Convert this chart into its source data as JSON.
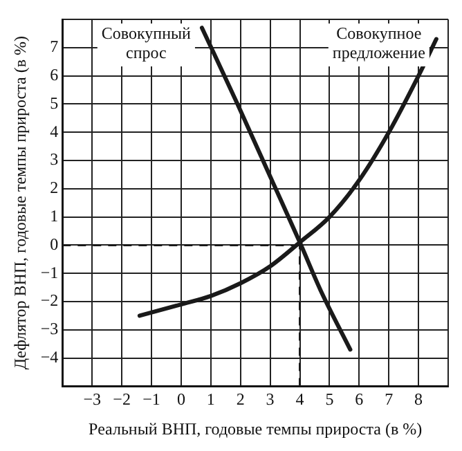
{
  "chart_data": {
    "type": "line",
    "xlabel": "Реальный ВНП, годовые темпы прироста (в %)",
    "ylabel": "Дефлятор ВНП, годовые темпы прироста (в %)",
    "series": [
      {
        "name": "Совокупный спрос",
        "color": "#1a1a1a",
        "x": [
          0.7,
          1.9,
          3.1,
          4,
          4.7,
          5.7
        ],
        "values": [
          7.7,
          5,
          2.2,
          0.1,
          -1.6,
          -3.7
        ]
      },
      {
        "name": "Совокупное предложение",
        "color": "#1a1a1a",
        "x": [
          -1.4,
          0,
          1,
          2,
          3,
          4,
          5,
          6,
          7,
          8,
          8.6
        ],
        "values": [
          -2.5,
          -2.1,
          -1.8,
          -1.35,
          -0.75,
          0.1,
          1,
          2.3,
          4,
          6,
          7.3
        ]
      }
    ],
    "xlim": [
      -4,
      9
    ],
    "xticks": [
      -3,
      -2,
      -1,
      0,
      1,
      2,
      3,
      4,
      5,
      6,
      7,
      8
    ],
    "ylim": [
      -5,
      8
    ],
    "yticks": [
      -4,
      -3,
      -2,
      -1,
      0,
      1,
      2,
      3,
      4,
      5,
      6,
      7
    ],
    "ref_lines": [
      {
        "axis": "y",
        "value": 0,
        "line_style": "dashed",
        "color": "#1a1a1a"
      },
      {
        "axis": "x",
        "value": 4,
        "line_style": "dashed",
        "color": "#1a1a1a"
      }
    ],
    "grid": true,
    "legend": false,
    "marker": "none",
    "line_style": "solid"
  }
}
